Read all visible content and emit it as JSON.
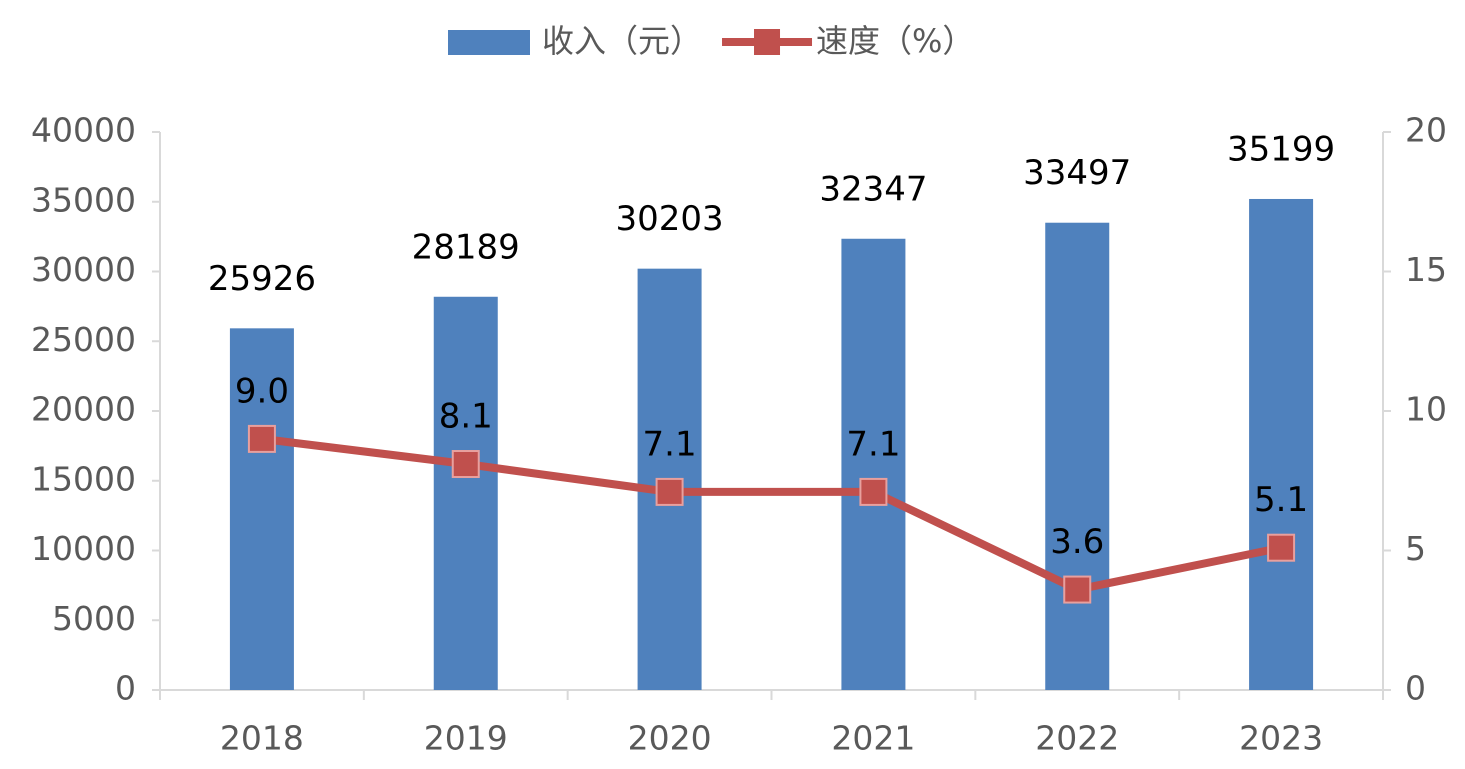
{
  "chart_data": {
    "type": "bar",
    "categories": [
      "2018",
      "2019",
      "2020",
      "2021",
      "2022",
      "2023"
    ],
    "series": [
      {
        "name": "收入（元）",
        "type": "bar",
        "color": "#4f81bd",
        "values": [
          25926,
          28189,
          30203,
          32347,
          33497,
          35199
        ]
      },
      {
        "name": "速度（%）",
        "type": "line",
        "axis": "y2",
        "color": "#c0504d",
        "values": [
          9.0,
          8.1,
          7.1,
          7.1,
          3.6,
          5.1
        ],
        "value_labels": [
          "9.0",
          "8.1",
          "7.1",
          "7.1",
          "3.6",
          "5.1"
        ]
      }
    ],
    "ylim": [
      0,
      40000
    ],
    "yticks": [
      0,
      5000,
      10000,
      15000,
      20000,
      25000,
      30000,
      35000,
      40000
    ],
    "y2lim": [
      0,
      20
    ],
    "y2ticks": [
      0,
      5,
      10,
      15,
      20
    ],
    "grid": false,
    "legend": "top"
  }
}
